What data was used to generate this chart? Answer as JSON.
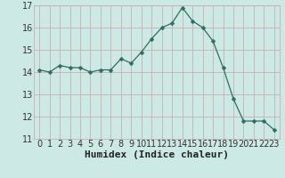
{
  "x": [
    0,
    1,
    2,
    3,
    4,
    5,
    6,
    7,
    8,
    9,
    10,
    11,
    12,
    13,
    14,
    15,
    16,
    17,
    18,
    19,
    20,
    21,
    22,
    23
  ],
  "y": [
    14.1,
    14.0,
    14.3,
    14.2,
    14.2,
    14.0,
    14.1,
    14.1,
    14.6,
    14.4,
    14.9,
    15.5,
    16.0,
    16.2,
    16.9,
    16.3,
    16.0,
    15.4,
    14.2,
    12.8,
    11.8,
    11.8,
    11.8,
    11.4
  ],
  "line_color": "#2d6e63",
  "marker": "D",
  "marker_size": 2.5,
  "bg_color": "#cce9e5",
  "grid_major_color": "#c8b0b0",
  "grid_minor_color": "#ddd0d0",
  "xlabel": "Humidex (Indice chaleur)",
  "xlabel_fontsize": 8,
  "tick_fontsize": 7,
  "ylim": [
    11,
    17
  ],
  "xlim": [
    -0.5,
    23.5
  ],
  "yticks": [
    11,
    12,
    13,
    14,
    15,
    16,
    17
  ],
  "xticks": [
    0,
    1,
    2,
    3,
    4,
    5,
    6,
    7,
    8,
    9,
    10,
    11,
    12,
    13,
    14,
    15,
    16,
    17,
    18,
    19,
    20,
    21,
    22,
    23
  ],
  "xtick_labels": [
    "0",
    "1",
    "2",
    "3",
    "4",
    "5",
    "6",
    "7",
    "8",
    "9",
    "10",
    "11",
    "12",
    "13",
    "14",
    "15",
    "16",
    "17",
    "18",
    "19",
    "20",
    "21",
    "22",
    "23"
  ]
}
